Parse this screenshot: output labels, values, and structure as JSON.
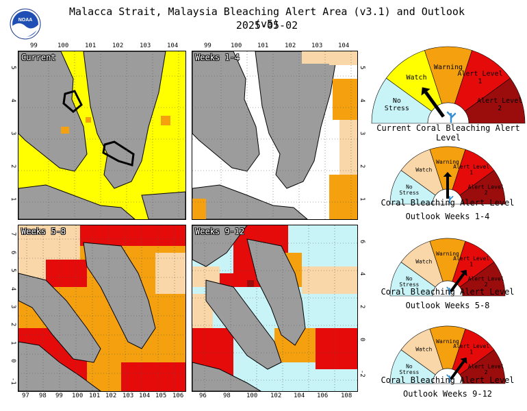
{
  "header": {
    "title": "Malacca Strait, Malaysia Bleaching Alert Area (v3.1) and Outlook (v5)",
    "date": "2025-05-02",
    "logo_text": "NOAA"
  },
  "colors": {
    "no_stress": "#c8f3f7",
    "watch_current": "#ffff00",
    "watch_outlook": "#fad7a8",
    "warning": "#f5a00f",
    "alert_1": "#e50b0b",
    "alert_2": "#9b0c0c",
    "land": "#9c9c9c"
  },
  "panels": {
    "current": {
      "label": "Current",
      "x_ticks": [
        "99",
        "100",
        "101",
        "102",
        "103",
        "104"
      ],
      "y_ticks": [
        "5",
        "4",
        "3",
        "2",
        "1"
      ]
    },
    "weeks_1_4": {
      "label": "Weeks 1-4",
      "x_ticks": [
        "99",
        "100",
        "101",
        "102",
        "103",
        "104"
      ],
      "y_ticks": [
        "5",
        "4",
        "3",
        "2",
        "1"
      ]
    },
    "weeks_5_8": {
      "label": "Weeks 5-8",
      "x_ticks": [
        "97",
        "98",
        "99",
        "100",
        "101",
        "102",
        "103",
        "104",
        "105",
        "106"
      ],
      "y_ticks": [
        "7",
        "6",
        "5",
        "4",
        "3",
        "2",
        "1",
        "0",
        "-1"
      ]
    },
    "weeks_9_12": {
      "label": "Weeks 9-12",
      "x_ticks": [
        "96",
        "98",
        "100",
        "102",
        "104",
        "106",
        "108"
      ],
      "y_ticks": [
        "6",
        "4",
        "2",
        "0",
        "-2"
      ]
    }
  },
  "gauge_labels": {
    "no_stress": "No Stress",
    "watch": "Watch",
    "warning": "Warning",
    "alert_1": "Alert Level 1",
    "alert_2": "Alert Level 2"
  },
  "gauges": [
    {
      "caption": "Current Coral Bleaching Alert Level",
      "subcaption": "",
      "level": "Watch"
    },
    {
      "caption": "Coral Bleaching Alert Level",
      "subcaption": "Outlook Weeks 1-4",
      "level": "Warning"
    },
    {
      "caption": "Coral Bleaching Alert Level",
      "subcaption": "Outlook Weeks 5-8",
      "level": "Alert Level 1"
    },
    {
      "caption": "Coral Bleaching Alert Level",
      "subcaption": "Outlook Weeks 9-12",
      "level": "Alert Level 1"
    }
  ]
}
